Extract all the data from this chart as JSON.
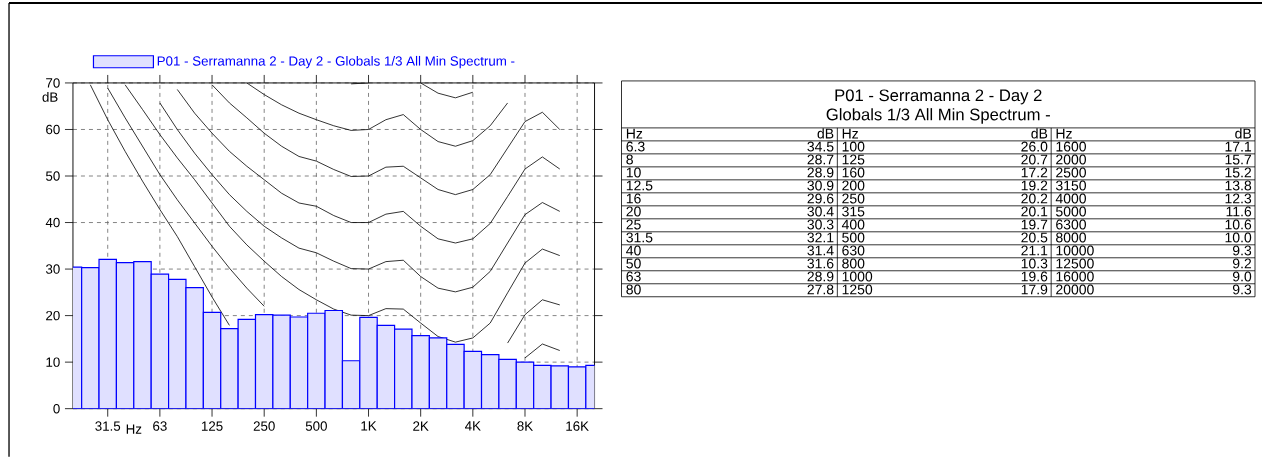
{
  "chart_data": [
    {
      "type": "bar",
      "xlabel": "Hz",
      "ylabel": "dB",
      "legend": "top left",
      "grid": true,
      "marker": "none",
      "categories": [
        null,
        null,
        "31.5",
        null,
        null,
        "63",
        null,
        null,
        "125",
        null,
        null,
        "250",
        null,
        null,
        "500",
        null,
        null,
        "1K",
        null,
        null,
        "2K",
        null,
        null,
        "4K",
        null,
        null,
        "8K",
        null,
        null,
        "16K",
        null
      ],
      "ylim": [
        0,
        70
      ],
      "yticks": [
        0,
        10,
        20,
        30,
        40,
        50,
        60,
        70
      ],
      "series": [
        {
          "type": "bar",
          "name": "P01 - Serramanna 2 - Day 2 - Globals 1/3 All Min Spectrum -",
          "color": "#0000ff",
          "values": [
            30.4,
            30.3,
            32.1,
            31.4,
            31.6,
            28.9,
            27.8,
            26.0,
            20.7,
            17.2,
            19.2,
            20.2,
            20.1,
            19.7,
            20.5,
            21.1,
            10.3,
            19.6,
            17.9,
            17.1,
            15.7,
            15.2,
            13.8,
            12.3,
            11.6,
            10.6,
            10.0,
            9.3,
            9.2,
            9.0,
            9.3
          ]
        },
        {
          "type": "line",
          "color": "#000000",
          "values": [
            null,
            69.6,
            62.1,
            55.3,
            48.9,
            42.8,
            37.0,
            30.5,
            24.0,
            17.9,
            null,
            null,
            null,
            null,
            null,
            null,
            null,
            null,
            null,
            null,
            null,
            null,
            null,
            null,
            null,
            null,
            10.9,
            13.9,
            12.5,
            null,
            null
          ]
        },
        {
          "type": "line",
          "color": "#000000",
          "values": [
            null,
            null,
            68.9,
            62.5,
            56.4,
            50.3,
            44.9,
            39.9,
            34.9,
            30.2,
            25.9,
            22.0,
            null,
            null,
            null,
            null,
            null,
            null,
            null,
            null,
            null,
            null,
            null,
            null,
            null,
            14.1,
            20.2,
            23.4,
            22.3,
            null,
            null
          ]
        },
        {
          "type": "line",
          "color": "#000000",
          "values": [
            null,
            null,
            null,
            69.6,
            64.3,
            58.9,
            53.9,
            49.2,
            44.2,
            39.2,
            35.2,
            31.7,
            28.4,
            25.6,
            23.4,
            21.4,
            20.1,
            20.0,
            21.5,
            21.4,
            18.4,
            15.5,
            14.3,
            15.2,
            18.4,
            24.9,
            31.3,
            34.3,
            32.9,
            null,
            null
          ]
        },
        {
          "type": "line",
          "color": "#000000",
          "values": [
            null,
            null,
            null,
            null,
            null,
            65.7,
            60.0,
            54.9,
            50.3,
            46.0,
            42.4,
            39.2,
            36.7,
            34.5,
            33.5,
            31.7,
            30.1,
            30.0,
            31.6,
            31.9,
            28.4,
            25.9,
            25.1,
            26.1,
            29.5,
            35.6,
            41.7,
            44.3,
            42.4,
            null,
            null
          ]
        },
        {
          "type": "line",
          "color": "#000000",
          "values": [
            null,
            null,
            null,
            null,
            null,
            null,
            68.6,
            63.5,
            59.2,
            55.3,
            52.1,
            49.2,
            46.3,
            44.2,
            43.5,
            41.5,
            40.0,
            40.0,
            41.8,
            42.4,
            39.2,
            36.5,
            35.6,
            36.5,
            39.8,
            45.6,
            51.5,
            54.1,
            51.5,
            null,
            null
          ]
        },
        {
          "type": "line",
          "color": "#000000",
          "values": [
            null,
            null,
            null,
            null,
            null,
            null,
            null,
            null,
            69.6,
            65.7,
            62.5,
            59.2,
            56.4,
            54.2,
            53.2,
            51.4,
            49.9,
            50.0,
            51.9,
            52.1,
            49.6,
            47.1,
            46.0,
            47.1,
            50.3,
            56.0,
            61.7,
            63.7,
            60.0,
            null,
            null
          ]
        },
        {
          "type": "line",
          "color": "#000000",
          "values": [
            null,
            null,
            null,
            null,
            null,
            null,
            null,
            null,
            null,
            null,
            70.0,
            67.5,
            65.3,
            63.5,
            62.1,
            60.8,
            59.8,
            60.0,
            62.1,
            63.2,
            60.0,
            57.4,
            56.4,
            57.6,
            60.8,
            65.7,
            null,
            null,
            null,
            null,
            null
          ]
        },
        {
          "type": "line",
          "color": "#000000",
          "values": [
            null,
            null,
            null,
            null,
            null,
            null,
            null,
            null,
            null,
            null,
            null,
            null,
            null,
            null,
            null,
            null,
            69.8,
            70.0,
            null,
            null,
            70.0,
            67.8,
            66.8,
            68.0,
            null,
            null,
            null,
            null,
            null,
            null,
            null
          ]
        }
      ]
    },
    {
      "type": "other",
      "title": "P01 - Serramanna 2 - Day 2",
      "subtitle": "Globals 1/3 All Min Spectrum -",
      "annotations": [
        "Hz",
        "dB",
        "Hz",
        "dB",
        "Hz",
        "dB",
        "6.3",
        "34.5",
        "100",
        "26.0",
        "1600",
        "17.1",
        "8",
        "28.7",
        "125",
        "20.7",
        "2000",
        "15.7",
        "10",
        "28.9",
        "160",
        "17.2",
        "2500",
        "15.2",
        "12.5",
        "30.9",
        "200",
        "19.2",
        "3150",
        "13.8",
        "16",
        "29.6",
        "250",
        "20.2",
        "4000",
        "12.3",
        "20",
        "30.4",
        "315",
        "20.1",
        "5000",
        "11.6",
        "25",
        "30.3",
        "400",
        "19.7",
        "6300",
        "10.6",
        "31.5",
        "32.1",
        "500",
        "20.5",
        "8000",
        "10.0",
        "40",
        "31.4",
        "630",
        "21.1",
        "10000",
        "9.3",
        "50",
        "31.6",
        "800",
        "10.3",
        "12500",
        "9.2",
        "63",
        "28.9",
        "1000",
        "19.6",
        "16000",
        "9.0",
        "80",
        "27.8",
        "1250",
        "17.9",
        "20000",
        "9.3"
      ]
    }
  ]
}
